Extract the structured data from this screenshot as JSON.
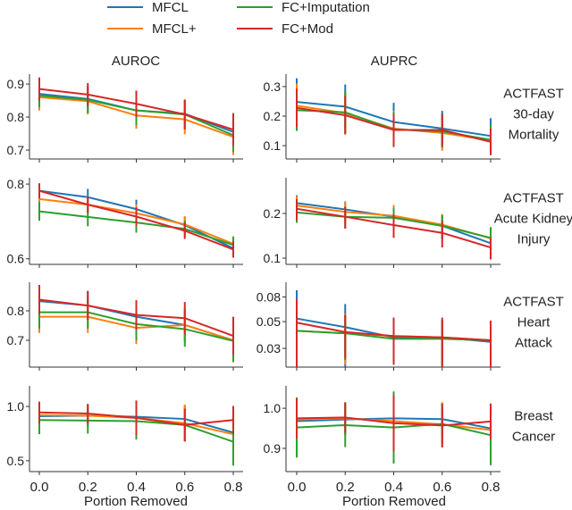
{
  "chart_data": {
    "type": "line",
    "legend": {
      "placement": "top-center",
      "entries": [
        "MFCL",
        "MFCL+",
        "FC+Imputation",
        "FC+Mod"
      ]
    },
    "colors": {
      "MFCL": "#1f77b4",
      "MFCL+": "#ff7f0e",
      "FC+Imputation": "#2ca02c",
      "FC+Mod": "#d62728"
    },
    "column_titles": [
      "AUROC",
      "AUPRC"
    ],
    "row_labels": [
      "ACTFAST\n30-day\nMortality",
      "ACTFAST\nAcute Kidney\nInjury",
      "ACTFAST\nHeart\nAttack",
      "Breast\nCancer"
    ],
    "xlabel": "Portion Removed",
    "x": [
      0.0,
      0.2,
      0.4,
      0.6,
      0.8
    ],
    "xticks": [
      "0.0",
      "0.2",
      "0.4",
      "0.6",
      "0.8"
    ],
    "grid": false,
    "panels": [
      {
        "row": 0,
        "col": 0,
        "metric": "AUROC",
        "yscale": "linear",
        "ylim": [
          0.673,
          0.93
        ],
        "yticks": [
          0.7,
          0.8,
          0.9
        ],
        "yticklabels": [
          "0.7",
          "0.8",
          "0.9"
        ],
        "series": [
          {
            "name": "MFCL",
            "values": [
              0.87,
              0.855,
              0.82,
              0.81,
              0.755
            ],
            "err": [
              0.04,
              0.04,
              0.04,
              0.04,
              0.05
            ]
          },
          {
            "name": "MFCL+",
            "values": [
              0.86,
              0.848,
              0.805,
              0.793,
              0.74
            ],
            "err": [
              0.04,
              0.04,
              0.04,
              0.045,
              0.055
            ]
          },
          {
            "name": "FC+Imputation",
            "values": [
              0.865,
              0.852,
              0.82,
              0.808,
              0.745
            ],
            "err": [
              0.035,
              0.04,
              0.045,
              0.045,
              0.05
            ]
          },
          {
            "name": "FC+Mod",
            "values": [
              0.885,
              0.868,
              0.84,
              0.808,
              0.762
            ],
            "err": [
              0.035,
              0.035,
              0.04,
              0.045,
              0.05
            ]
          }
        ]
      },
      {
        "row": 0,
        "col": 1,
        "metric": "AUPRC",
        "yscale": "linear",
        "ylim": [
          0.055,
          0.342
        ],
        "yticks": [
          0.1,
          0.2,
          0.3
        ],
        "yticklabels": [
          "0.1",
          "0.2",
          "0.3"
        ],
        "series": [
          {
            "name": "MFCL",
            "values": [
              0.248,
              0.232,
              0.18,
              0.158,
              0.133
            ],
            "err": [
              0.08,
              0.075,
              0.065,
              0.06,
              0.06
            ]
          },
          {
            "name": "MFCL+",
            "values": [
              0.235,
              0.21,
              0.158,
              0.143,
              0.118
            ],
            "err": [
              0.075,
              0.07,
              0.06,
              0.06,
              0.05
            ]
          },
          {
            "name": "FC+Imputation",
            "values": [
              0.22,
              0.213,
              0.155,
              0.148,
              0.12
            ],
            "err": [
              0.07,
              0.07,
              0.06,
              0.055,
              0.05
            ]
          },
          {
            "name": "FC+Mod",
            "values": [
              0.228,
              0.203,
              0.153,
              0.153,
              0.113
            ],
            "err": [
              0.065,
              0.065,
              0.055,
              0.055,
              0.045
            ]
          }
        ]
      },
      {
        "row": 1,
        "col": 0,
        "metric": "AUROC",
        "yscale": "linear",
        "ylim": [
          0.585,
          0.817
        ],
        "yticks": [
          0.6,
          0.8
        ],
        "yticklabels": [
          "0.6",
          "0.8"
        ],
        "series": [
          {
            "name": "MFCL",
            "values": [
              0.782,
              0.765,
              0.733,
              0.69,
              0.628
            ],
            "err": [
              0.02,
              0.022,
              0.025,
              0.022,
              0.025
            ]
          },
          {
            "name": "MFCL+",
            "values": [
              0.76,
              0.745,
              0.722,
              0.692,
              0.64
            ],
            "err": [
              0.02,
              0.022,
              0.024,
              0.022,
              0.02
            ]
          },
          {
            "name": "FC+Imputation",
            "values": [
              0.727,
              0.712,
              0.697,
              0.68,
              0.637
            ],
            "err": [
              0.025,
              0.025,
              0.027,
              0.022,
              0.022
            ]
          },
          {
            "name": "FC+Mod",
            "values": [
              0.782,
              0.745,
              0.713,
              0.675,
              0.625
            ],
            "err": [
              0.02,
              0.022,
              0.025,
              0.022,
              0.022
            ]
          }
        ]
      },
      {
        "row": 1,
        "col": 1,
        "metric": "AUPRC",
        "yscale": "log",
        "ylim": [
          0.0908,
          0.348
        ],
        "yticks": [
          0.1,
          0.2
        ],
        "yticklabels": [
          "0.1",
          "0.2"
        ],
        "series": [
          {
            "name": "MFCL",
            "values": [
              0.235,
              0.213,
              0.19,
              0.165,
              0.126
            ],
            "err": [
              0.03,
              0.028,
              0.03,
              0.03,
              0.02
            ]
          },
          {
            "name": "MFCL+",
            "values": [
              0.226,
              0.205,
              0.193,
              0.168,
              0.136
            ],
            "err": [
              0.035,
              0.035,
              0.035,
              0.03,
              0.025
            ]
          },
          {
            "name": "FC+Imputation",
            "values": [
              0.203,
              0.19,
              0.187,
              0.165,
              0.137
            ],
            "err": [
              0.03,
              0.03,
              0.03,
              0.03,
              0.025
            ]
          },
          {
            "name": "FC+Mod",
            "values": [
              0.215,
              0.19,
              0.167,
              0.148,
              0.118
            ],
            "err": [
              0.035,
              0.032,
              0.03,
              0.03,
              0.02
            ]
          }
        ]
      },
      {
        "row": 2,
        "col": 0,
        "metric": "AUROC",
        "yscale": "linear",
        "ylim": [
          0.609,
          0.897
        ],
        "yticks": [
          0.7,
          0.8
        ],
        "yticklabels": [
          "0.7",
          "0.8"
        ],
        "series": [
          {
            "name": "MFCL",
            "values": [
              0.833,
              0.818,
              0.78,
              0.752,
              0.7
            ],
            "err": [
              0.05,
              0.05,
              0.055,
              0.055,
              0.07
            ]
          },
          {
            "name": "MFCL+",
            "values": [
              0.78,
              0.78,
              0.742,
              0.752,
              0.7
            ],
            "err": [
              0.055,
              0.055,
              0.055,
              0.055,
              0.075
            ]
          },
          {
            "name": "FC+Imputation",
            "values": [
              0.795,
              0.795,
              0.755,
              0.738,
              0.698
            ],
            "err": [
              0.055,
              0.055,
              0.055,
              0.06,
              0.07
            ]
          },
          {
            "name": "FC+Mod",
            "values": [
              0.838,
              0.818,
              0.786,
              0.775,
              0.715
            ],
            "err": [
              0.05,
              0.048,
              0.05,
              0.055,
              0.065
            ]
          }
        ]
      },
      {
        "row": 2,
        "col": 1,
        "metric": "AUPRC",
        "yscale": "log",
        "ylim": [
          0.021,
          0.106
        ],
        "yticks": [
          0.03,
          0.05,
          0.08
        ],
        "yticklabels": [
          "0.03",
          "0.05",
          "0.08"
        ],
        "series": [
          {
            "name": "MFCL",
            "values": [
              0.053,
              0.045,
              0.037,
              0.037,
              0.034
            ],
            "err": [
              0.038,
              0.025,
              0.015,
              0.015,
              0.015
            ]
          },
          {
            "name": "MFCL+",
            "values": [
              0.042,
              0.04,
              0.038,
              0.037,
              0.035
            ],
            "err": [
              0.02,
              0.018,
              0.015,
              0.015,
              0.015
            ]
          },
          {
            "name": "FC+Imputation",
            "values": [
              0.042,
              0.04,
              0.036,
              0.036,
              0.035
            ],
            "err": [
              0.018,
              0.016,
              0.014,
              0.015,
              0.015
            ]
          },
          {
            "name": "FC+Mod",
            "values": [
              0.049,
              0.041,
              0.038,
              0.037,
              0.035
            ],
            "err": [
              0.028,
              0.016,
              0.016,
              0.017,
              0.016
            ]
          }
        ]
      },
      {
        "row": 3,
        "col": 0,
        "metric": "AUROC",
        "yscale": "linear",
        "ylim": [
          0.4,
          1.19
        ],
        "yticks": [
          0.5,
          1.0
        ],
        "yticklabels": [
          "0.5",
          "1.0"
        ],
        "series": [
          {
            "name": "MFCL",
            "values": [
              0.91,
              0.915,
              0.905,
              0.885,
              0.76
            ],
            "err": [
              0.12,
              0.1,
              0.12,
              0.13,
              0.17
            ]
          },
          {
            "name": "MFCL+",
            "values": [
              0.92,
              0.915,
              0.895,
              0.845,
              0.745
            ],
            "err": [
              0.12,
              0.1,
              0.14,
              0.17,
              0.17
            ]
          },
          {
            "name": "FC+Imputation",
            "values": [
              0.875,
              0.87,
              0.865,
              0.83,
              0.675
            ],
            "err": [
              0.13,
              0.12,
              0.17,
              0.15,
              0.22
            ]
          },
          {
            "name": "FC+Mod",
            "values": [
              0.945,
              0.935,
              0.895,
              0.83,
              0.875
            ],
            "err": [
              0.1,
              0.09,
              0.16,
              0.15,
              0.13
            ]
          }
        ]
      },
      {
        "row": 3,
        "col": 1,
        "metric": "AUPRC",
        "yscale": "linear",
        "ylim": [
          0.842,
          1.056
        ],
        "yticks": [
          0.9,
          1.0
        ],
        "yticklabels": [
          "0.9",
          "1.0"
        ],
        "series": [
          {
            "name": "MFCL",
            "values": [
              0.968,
              0.972,
              0.975,
              0.973,
              0.95
            ],
            "err": [
              0.05,
              0.04,
              0.05,
              0.04,
              0.06
            ]
          },
          {
            "name": "MFCL+",
            "values": [
              0.972,
              0.975,
              0.968,
              0.96,
              0.946
            ],
            "err": [
              0.05,
              0.04,
              0.06,
              0.055,
              0.06
            ]
          },
          {
            "name": "FC+Imputation",
            "values": [
              0.952,
              0.958,
              0.952,
              0.961,
              0.933
            ],
            "err": [
              0.075,
              0.055,
              0.09,
              0.05,
              0.075
            ]
          },
          {
            "name": "FC+Mod",
            "values": [
              0.975,
              0.977,
              0.963,
              0.957,
              0.967
            ],
            "err": [
              0.05,
              0.038,
              0.07,
              0.055,
              0.045
            ]
          }
        ]
      }
    ]
  }
}
